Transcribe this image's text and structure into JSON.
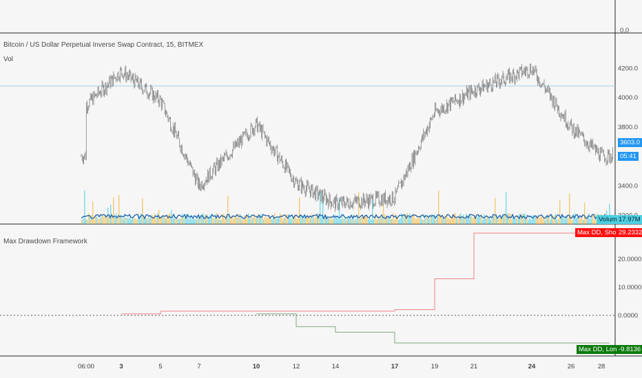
{
  "chart_header": {
    "symbol_title": "Bitcoin / US Dollar Perpetual Inverse Swap Contract, 15, BITMEX",
    "volume_label": "Vol"
  },
  "indicator_header": {
    "title": "Max Drawdown Framework"
  },
  "top_pane": {
    "tick_label": "0.0"
  },
  "price_axis": {
    "ticks": [
      "4200.0",
      "4000.0",
      "3800.0",
      "3600.0",
      "3400.0",
      "3200.0"
    ]
  },
  "last_price": {
    "value": "3603.0",
    "countdown": "05:41",
    "color": "#2196f3"
  },
  "volume_tag": {
    "name": "Volume",
    "value": "17.97M",
    "color": "#4dd0e1"
  },
  "indicator_axis": {
    "ticks": [
      "20.0000",
      "10.0000",
      "0.0000"
    ]
  },
  "short_tag": {
    "name": "Max DD, Short (%)",
    "value": "29.2332",
    "color": "#ff1010"
  },
  "long_tag": {
    "name": "Max DD, Long (%)",
    "value": "-9.8136",
    "color": "#0c7a0c"
  },
  "time_axis": {
    "ticks": [
      "06:00",
      "3",
      "5",
      "7",
      "10",
      "12",
      "14",
      "17",
      "19",
      "21",
      "24",
      "26",
      "28"
    ]
  },
  "chart_data": [
    {
      "type": "line",
      "title": "Bitcoin / US Dollar Perpetual Inverse Swap Contract, 15, BITMEX",
      "series_kind": "candlestick",
      "x": [
        "06:00",
        "3",
        "5",
        "7",
        "10",
        "12",
        "14",
        "17",
        "19",
        "21",
        "24",
        "26",
        "28"
      ],
      "y": [
        3950,
        4180,
        3980,
        3400,
        3820,
        3420,
        3280,
        3320,
        3900,
        4050,
        4200,
        3800,
        3603
      ],
      "ylim": [
        3150,
        4300
      ],
      "reference_line": 4080,
      "colors": {
        "up": "#26a69a",
        "down": "#ef5350",
        "line": "#555555",
        "reference": "#9ecfe8"
      }
    },
    {
      "type": "line",
      "title": "Max Drawdown Framework",
      "x": [
        "06:00",
        "3",
        "5",
        "7",
        "10",
        "12",
        "14",
        "17",
        "19",
        "21",
        "24",
        "26",
        "28"
      ],
      "series": [
        {
          "name": "Max DD, Short (%)",
          "color": "#f08080",
          "values": [
            null,
            0.5,
            1.5,
            1.5,
            1.5,
            1.5,
            1.5,
            2,
            13,
            29.2332,
            29.2332,
            29.2332,
            29.2332
          ]
        },
        {
          "name": "Max DD, Long (%)",
          "color": "#7fa87f",
          "values": [
            null,
            null,
            null,
            null,
            0.5,
            -4,
            -6,
            -9.8136,
            -9.8136,
            -9.8136,
            -9.8136,
            -9.8136,
            -9.8136
          ]
        }
      ],
      "ylim": [
        -12,
        30
      ]
    }
  ]
}
